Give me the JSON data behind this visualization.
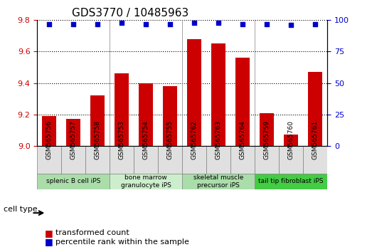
{
  "title": "GDS3770 / 10485963",
  "samples": [
    "GSM565756",
    "GSM565757",
    "GSM565758",
    "GSM565753",
    "GSM565754",
    "GSM565755",
    "GSM565762",
    "GSM565763",
    "GSM565764",
    "GSM565759",
    "GSM565760",
    "GSM565761"
  ],
  "transformed_count": [
    9.19,
    9.17,
    9.32,
    9.46,
    9.4,
    9.38,
    9.68,
    9.65,
    9.56,
    9.21,
    9.07,
    9.47
  ],
  "percentile_rank": [
    97,
    97,
    97,
    98,
    97,
    97,
    98,
    98,
    97,
    97,
    96,
    97
  ],
  "ylim_left": [
    9.0,
    9.8
  ],
  "ylim_right": [
    0,
    100
  ],
  "yticks_left": [
    9.0,
    9.2,
    9.4,
    9.6,
    9.8
  ],
  "yticks_right": [
    0,
    25,
    50,
    75,
    100
  ],
  "bar_color": "#cc0000",
  "dot_color": "#0000cc",
  "grid_color": "#000000",
  "cell_types": [
    {
      "label": "splenic B cell iPS",
      "start": 0,
      "end": 3,
      "color": "#aaddaa"
    },
    {
      "label": "bone marrow\ngranulocyte iPS",
      "start": 3,
      "end": 6,
      "color": "#cceecc"
    },
    {
      "label": "skeletal muscle\nprecursor iPS",
      "start": 6,
      "end": 9,
      "color": "#aaddaa"
    },
    {
      "label": "tail tip fibroblast iPS",
      "start": 9,
      "end": 12,
      "color": "#44cc44"
    }
  ],
  "xlabel_cell_type": "cell type",
  "legend_bar_label": "transformed count",
  "legend_dot_label": "percentile rank within the sample",
  "title_fontsize": 11,
  "tick_fontsize": 8,
  "label_fontsize": 8,
  "bar_width": 0.6
}
